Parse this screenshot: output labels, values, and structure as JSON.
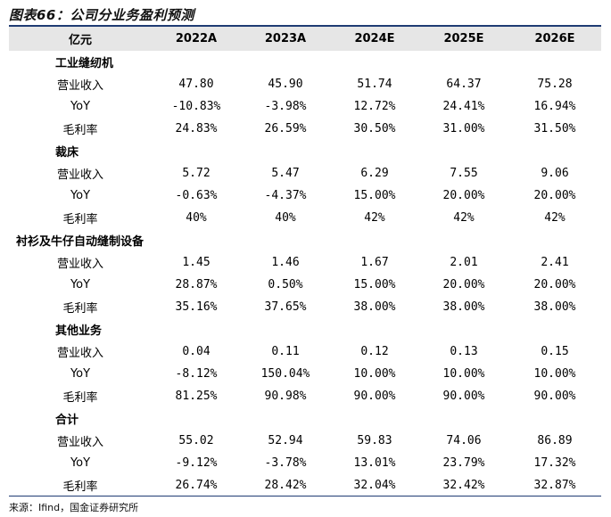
{
  "title": "图表66：公司分业务盈利预测",
  "header": {
    "unit": "亿元",
    "years": [
      "2022A",
      "2023A",
      "2024E",
      "2025E",
      "2026E"
    ]
  },
  "sections": [
    {
      "name": "工业缝纫机",
      "rows": [
        {
          "label": "营业收入",
          "values": [
            "47.80",
            "45.90",
            "51.74",
            "64.37",
            "75.28"
          ]
        },
        {
          "label": "YoY",
          "values": [
            "-10.83%",
            "-3.98%",
            "12.72%",
            "24.41%",
            "16.94%"
          ]
        },
        {
          "label": "毛利率",
          "values": [
            "24.83%",
            "26.59%",
            "30.50%",
            "31.00%",
            "31.50%"
          ]
        }
      ]
    },
    {
      "name": "裁床",
      "rows": [
        {
          "label": "营业收入",
          "values": [
            "5.72",
            "5.47",
            "6.29",
            "7.55",
            "9.06"
          ]
        },
        {
          "label": "YoY",
          "values": [
            "-0.63%",
            "-4.37%",
            "15.00%",
            "20.00%",
            "20.00%"
          ]
        },
        {
          "label": "毛利率",
          "values": [
            "40%",
            "40%",
            "42%",
            "42%",
            "42%"
          ]
        }
      ]
    },
    {
      "name": "衬衫及牛仔自动缝制设备",
      "rows": [
        {
          "label": "营业收入",
          "values": [
            "1.45",
            "1.46",
            "1.67",
            "2.01",
            "2.41"
          ]
        },
        {
          "label": "YoY",
          "values": [
            "28.87%",
            "0.50%",
            "15.00%",
            "20.00%",
            "20.00%"
          ]
        },
        {
          "label": "毛利率",
          "values": [
            "35.16%",
            "37.65%",
            "38.00%",
            "38.00%",
            "38.00%"
          ]
        }
      ]
    },
    {
      "name": "其他业务",
      "rows": [
        {
          "label": "营业收入",
          "values": [
            "0.04",
            "0.11",
            "0.12",
            "0.13",
            "0.15"
          ]
        },
        {
          "label": "YoY",
          "values": [
            "-8.12%",
            "150.04%",
            "10.00%",
            "10.00%",
            "10.00%"
          ]
        },
        {
          "label": "毛利率",
          "values": [
            "81.25%",
            "90.98%",
            "90.00%",
            "90.00%",
            "90.00%"
          ]
        }
      ]
    },
    {
      "name": "合计",
      "rows": [
        {
          "label": "营业收入",
          "values": [
            "55.02",
            "52.94",
            "59.83",
            "74.06",
            "86.89"
          ]
        },
        {
          "label": "YoY",
          "values": [
            "-9.12%",
            "-3.78%",
            "13.01%",
            "23.79%",
            "17.32%"
          ]
        },
        {
          "label": "毛利率",
          "values": [
            "26.74%",
            "28.42%",
            "32.04%",
            "32.42%",
            "32.87%"
          ]
        }
      ]
    }
  ],
  "source": "来源：Ifind，国金证券研究所",
  "colors": {
    "header_bg": "#e6e6e6",
    "rule": "#1f3b73"
  }
}
